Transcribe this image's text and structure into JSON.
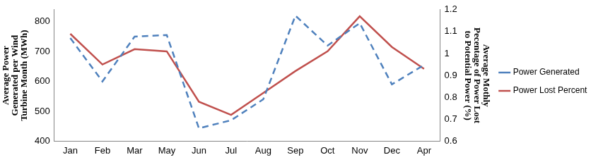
{
  "chart_data": {
    "type": "line",
    "categories": [
      "Jan",
      "Feb",
      "Mar",
      "May",
      "Jun",
      "Jul",
      "Aug",
      "Sep",
      "Oct",
      "Nov",
      "Dec",
      "Apr"
    ],
    "ylabel": [
      "Average Power",
      "Generated per Wind",
      "Turbine Month (MWh)"
    ],
    "y2label": [
      "Average Mothly",
      "Pecentage of Power Lost",
      "to Potential Power (%)"
    ],
    "ylim": [
      400,
      840
    ],
    "yticks": [
      400,
      500,
      600,
      700,
      800
    ],
    "y2lim": [
      0.6,
      1.2
    ],
    "y2ticks": [
      0.6,
      0.7,
      0.8,
      0.9,
      1,
      1.1,
      1.2
    ],
    "grid": false,
    "legend": "right",
    "series": [
      {
        "name": "Power Generated",
        "color": "#4f81bd",
        "line_style": "dashed",
        "values": [
          745,
          600,
          750,
          755,
          443,
          470,
          540,
          820,
          720,
          795,
          590,
          655
        ]
      },
      {
        "name": "Power Lost Percent",
        "color": "#c0504d",
        "line_style": "solid",
        "axis": "y2",
        "values": [
          1.09,
          0.95,
          1.02,
          1.01,
          0.78,
          0.72,
          0.82,
          0.92,
          1.01,
          1.17,
          1.03,
          0.93
        ]
      }
    ]
  }
}
